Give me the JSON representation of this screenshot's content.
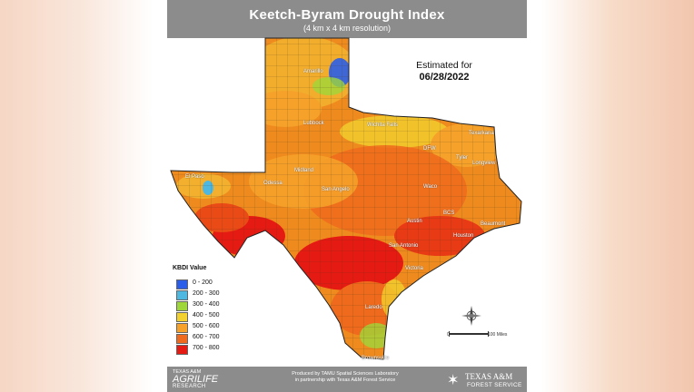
{
  "header": {
    "title": "Keetch-Byram Drought Index",
    "subtitle": "(4 km x 4 km resolution)"
  },
  "estimate": {
    "label": "Estimated for",
    "date": "06/28/2022"
  },
  "legend": {
    "title": "KBDI Value",
    "items": [
      {
        "label": "0 - 200",
        "color": "#2a5ee8"
      },
      {
        "label": "200 - 300",
        "color": "#4fb8e0"
      },
      {
        "label": "300 - 400",
        "color": "#9fd63a"
      },
      {
        "label": "400 - 500",
        "color": "#f2d02e"
      },
      {
        "label": "500 - 600",
        "color": "#f5a12a"
      },
      {
        "label": "600 - 700",
        "color": "#ef6a1c"
      },
      {
        "label": "700 - 800",
        "color": "#e51a12"
      }
    ]
  },
  "cities": [
    {
      "name": "Amarillo"
    },
    {
      "name": "Lubbock"
    },
    {
      "name": "Wichita Falls"
    },
    {
      "name": "Texarkana"
    },
    {
      "name": "DFW"
    },
    {
      "name": "Tyler"
    },
    {
      "name": "Longview"
    },
    {
      "name": "El Paso"
    },
    {
      "name": "Midland"
    },
    {
      "name": "Odessa"
    },
    {
      "name": "San Angelo"
    },
    {
      "name": "Waco"
    },
    {
      "name": "BCS"
    },
    {
      "name": "Austin"
    },
    {
      "name": "Beaumont"
    },
    {
      "name": "Houston"
    },
    {
      "name": "San Antonio"
    },
    {
      "name": "Victoria"
    },
    {
      "name": "Laredo"
    },
    {
      "name": "Brownsville"
    }
  ],
  "scale": {
    "zero": "0",
    "max": "100 Miles"
  },
  "footer": {
    "agrilife_line1": "TEXAS A&M",
    "agrilife_line2": "AGRILIFE",
    "agrilife_line3": "RESEARCH",
    "credits_line1": "Produced by TAMU Spatial Sciences Laboratory",
    "credits_line2": "in partnership with Texas A&M Forest Service",
    "tamu_line1": "TEXAS A&M",
    "tamu_line2": "FOREST SERVICE"
  },
  "colors": {
    "header_bg": "#8c8c8c",
    "map_base": "#ef8a1e"
  }
}
